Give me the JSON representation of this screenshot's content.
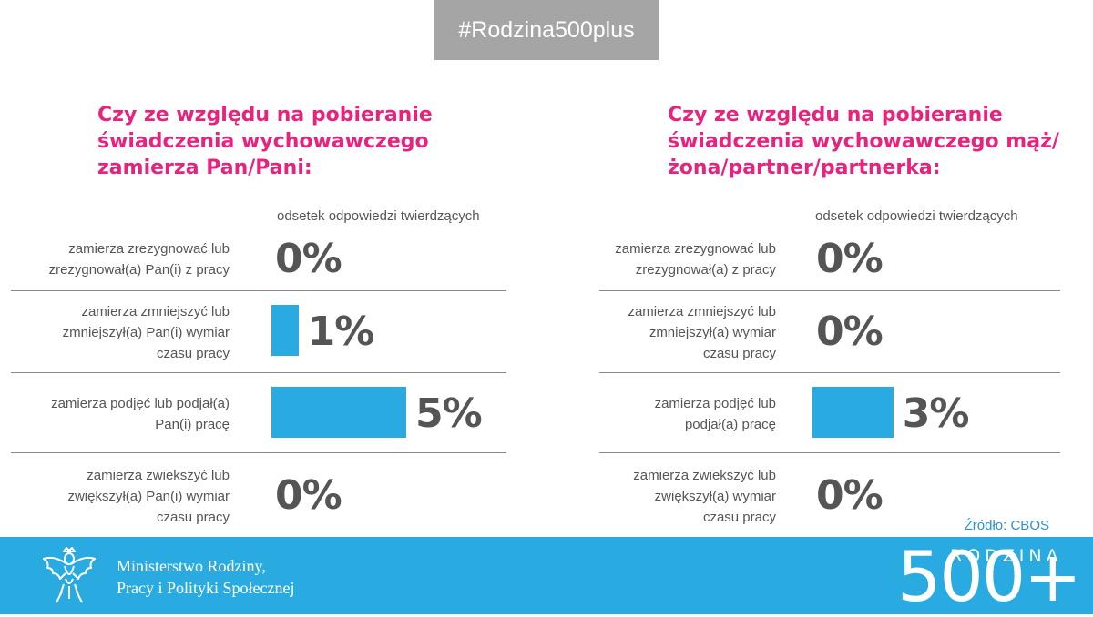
{
  "header": {
    "hashtag": "#Rodzina500plus"
  },
  "chart_data": [
    {
      "type": "bar",
      "title": "Czy ze względu na pobieranie świadczenia wychowawczego zamierza Pan/Pani:",
      "column_header": "odsetek odpowiedzi twierdzących",
      "categories": [
        "zamierza zrezygnować lub zrezygnował(a) Pan(i) z pracy",
        "zamierza zmniejszyć lub zmniejszył(a) Pan(i) wymiar czasu pracy",
        "zamierza podjęć lub podjał(a) Pan(i) pracę",
        "zamierza zwiekszyć lub zwiększył(a) Pan(i) wymiar czasu pracy"
      ],
      "values": [
        0,
        1,
        5,
        0
      ],
      "value_labels": [
        "0%",
        "1%",
        "5%",
        "0%"
      ],
      "unit": "%"
    },
    {
      "type": "bar",
      "title": "Czy ze względu na pobieranie świadczenia wychowawczego mąż/żona/partner/partnerka:",
      "column_header": "odsetek odpowiedzi twierdzących",
      "categories": [
        "zamierza zrezygnować lub zrezygnował(a) z pracy",
        "zamierza zmniejszyć lub zmniejszył(a) wymiar czasu pracy",
        "zamierza podjęć lub podjał(a) pracę",
        "zamierza zwiekszyć lub zwiększył(a) wymiar czasu pracy"
      ],
      "values": [
        0,
        0,
        3,
        0
      ],
      "value_labels": [
        "0%",
        "0%",
        "3%",
        "0%"
      ],
      "unit": "%"
    }
  ],
  "source": "Źródło: CBOS",
  "footer": {
    "ministry_line1": "Ministerstwo Rodziny,",
    "ministry_line2": "Pracy i Polityki Społecznej",
    "logo_number": "500+",
    "logo_word": "RODZINA"
  },
  "colors": {
    "accent_pink": "#e6247e",
    "bar_blue": "#29abe2",
    "hashtag_bg": "#a5a5a5",
    "footer_bg": "#29abe2"
  }
}
